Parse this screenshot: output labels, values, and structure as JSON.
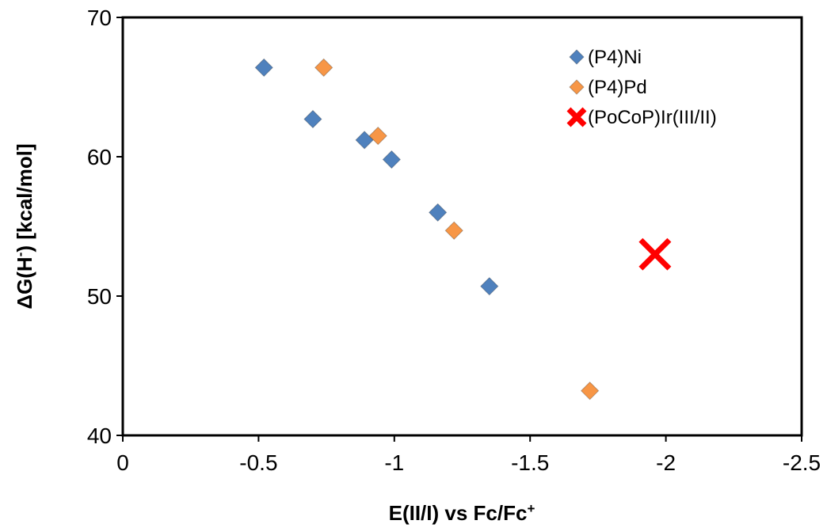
{
  "chart_data": {
    "type": "scatter",
    "xlabel": "E(II/I) vs Fc/Fc+",
    "ylabel": "ΔG(H-) [kcal/mol]",
    "xlim": [
      0,
      -2.5
    ],
    "ylim": [
      40,
      70
    ],
    "x_ticks": [
      0,
      -0.5,
      -1,
      -1.5,
      -2,
      -2.5
    ],
    "y_ticks": [
      40,
      50,
      60,
      70
    ],
    "x_tick_labels": [
      "0",
      "-0.5",
      "-1",
      "-1.5",
      "-2",
      "-2.5"
    ],
    "y_tick_labels": [
      "40",
      "50",
      "60",
      "70"
    ],
    "grid": false,
    "legend_position": "top-right",
    "series": [
      {
        "name": "(P4)Ni",
        "marker": "diamond",
        "color": "#4F81BD",
        "points": [
          {
            "x": -0.52,
            "y": 66.4
          },
          {
            "x": -0.7,
            "y": 62.7
          },
          {
            "x": -0.89,
            "y": 61.2
          },
          {
            "x": -0.99,
            "y": 59.8
          },
          {
            "x": -1.16,
            "y": 56.0
          },
          {
            "x": -1.35,
            "y": 50.7
          }
        ]
      },
      {
        "name": "(P4)Pd",
        "marker": "diamond",
        "color": "#F79646",
        "points": [
          {
            "x": -0.74,
            "y": 66.4
          },
          {
            "x": -0.94,
            "y": 61.5
          },
          {
            "x": -1.22,
            "y": 54.7
          },
          {
            "x": -1.72,
            "y": 43.2
          }
        ]
      },
      {
        "name": "(PoCoP)Ir(III/II)",
        "marker": "x",
        "color": "#FF0000",
        "points": [
          {
            "x": -1.96,
            "y": 53.0
          }
        ]
      }
    ]
  }
}
